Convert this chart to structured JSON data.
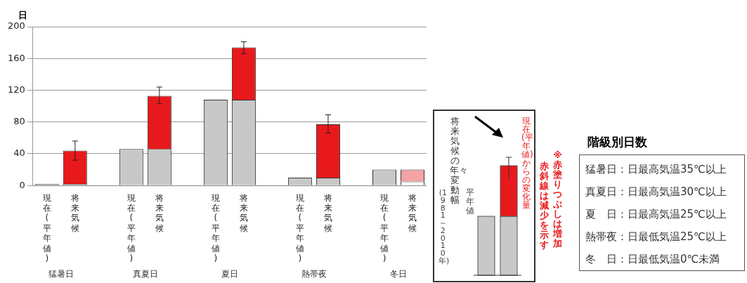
{
  "chart_data": {
    "type": "bar",
    "stacked": true,
    "ylabel": "日",
    "ylim": [
      0,
      200
    ],
    "yticks": [
      0,
      40,
      80,
      120,
      160,
      200
    ],
    "grid": "y",
    "legend": false,
    "categories": [
      "現在(平年値)",
      "将来気候",
      null,
      "現在(平年値)",
      "将来気候",
      null,
      "現在(平年値)",
      "将来気候",
      null,
      "現在(平年値)",
      "将来気候",
      null,
      "現在(平年値)",
      "将来気候"
    ],
    "series": [
      {
        "color": "#c8c8c8",
        "colors": [
          "#c8c8c8",
          "#c8c8c8",
          null,
          "#c8c8c8",
          "#c8c8c8",
          null,
          "#c8c8c8",
          "#c8c8c8",
          null,
          "#c8c8c8",
          "#c8c8c8",
          null,
          "#c8c8c8",
          "#ffffff"
        ],
        "values": [
          2,
          2,
          null,
          46,
          46,
          null,
          108,
          108,
          null,
          10,
          10,
          null,
          20,
          5
        ]
      },
      {
        "color": "#e8191c",
        "values": [
          null,
          42,
          null,
          null,
          67,
          null,
          null,
          66,
          null,
          null,
          67,
          null,
          null,
          null
        ],
        "errors": [
          null,
          [
            32,
            56
          ],
          null,
          null,
          [
            103,
            124
          ],
          null,
          null,
          [
            166,
            181
          ],
          null,
          null,
          [
            66,
            89
          ],
          null,
          null,
          null
        ]
      },
      {
        "color": "#f4a3a3",
        "values": [
          null,
          null,
          null,
          null,
          null,
          null,
          null,
          null,
          null,
          null,
          null,
          null,
          null,
          15
        ]
      }
    ],
    "annotations": [
      "猛暑日",
      "真夏日",
      "夏日",
      "熱帯夜",
      "冬日",
      "将来気候の年々変動幅",
      "現在(平年値)からの変化量",
      "平年値",
      "(1981～2010年)",
      "※赤塗りつぶしは増加",
      "赤斜線は減少を示す",
      "階級別日数",
      "猛暑日：日最高気温35℃以上",
      "真夏日：日最高気温30℃以上",
      "夏　日：日最高気温25℃以上",
      "熱帯夜：日最低気温25℃以上",
      "冬　日：日最低気温0℃未満"
    ]
  }
}
